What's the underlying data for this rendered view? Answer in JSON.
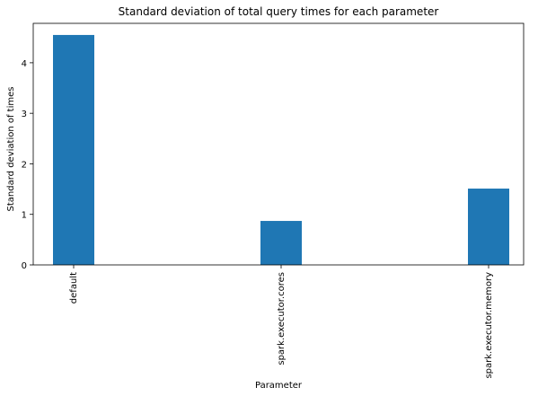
{
  "chart_data": {
    "type": "bar",
    "title": "Standard deviation of total query times for each parameter",
    "xlabel": "Parameter",
    "ylabel": "Standard deviation of times",
    "categories": [
      "default",
      "spark.executor.cores",
      "spark.executor.memory"
    ],
    "values": [
      4.55,
      0.87,
      1.51
    ],
    "ylim": [
      0,
      4.78
    ],
    "yticks": [
      0,
      1,
      2,
      3,
      4
    ],
    "grid": false,
    "legend": "none",
    "bar_color": "#1f77b4"
  }
}
